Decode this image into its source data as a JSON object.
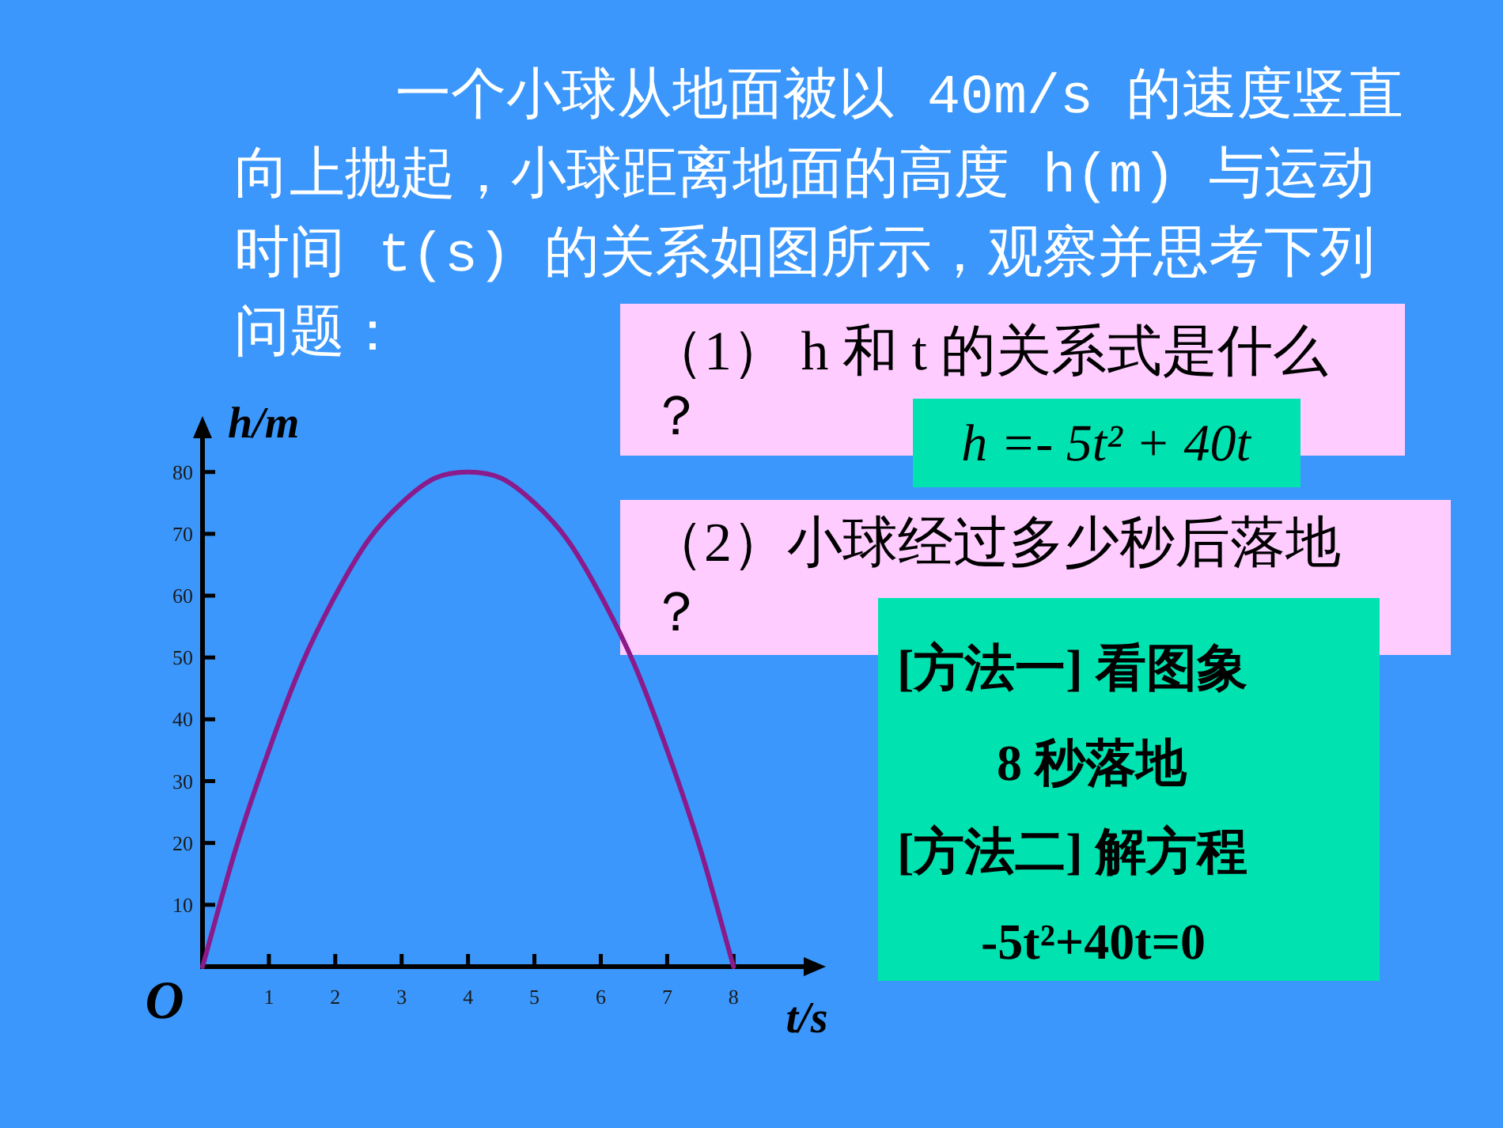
{
  "chart_data": {
    "type": "line",
    "title": "一个小球从地面被以 40m/s 的速度竖直向上抛起，小球距离地面的高度 h(m) 与运动时间 t(s) 的关系如图所示，观察并思考下列问题：",
    "xlabel": "t/s",
    "ylabel": "h/m",
    "x": [
      0,
      0.5,
      1,
      1.5,
      2,
      2.5,
      3,
      3.5,
      4,
      4.5,
      5,
      5.5,
      6,
      6.5,
      7,
      7.5,
      8
    ],
    "series": [
      {
        "color": "#8b1a8b",
        "values": [
          0,
          19,
          35,
          49,
          60,
          69,
          75,
          79,
          80,
          79,
          75,
          69,
          60,
          49,
          35,
          19,
          0
        ]
      }
    ],
    "xlim": [
      0,
      9.2
    ],
    "ylim": [
      0,
      87
    ],
    "xticks": [
      1,
      2,
      3,
      4,
      5,
      6,
      7,
      8
    ],
    "yticks": [
      10,
      20,
      30,
      40,
      50,
      60,
      70,
      80
    ],
    "annotations": [
      {
        "text": "O",
        "x": 0,
        "y": 0
      },
      "（1） h 和 t 的关系式是什么？",
      "h =- 5t² + 40t",
      "（2）小球经过多少秒后落地？",
      "[方法一] 看图象",
      "8 秒落地",
      "[方法二] 解方程",
      "-5t²+40t=0"
    ]
  }
}
